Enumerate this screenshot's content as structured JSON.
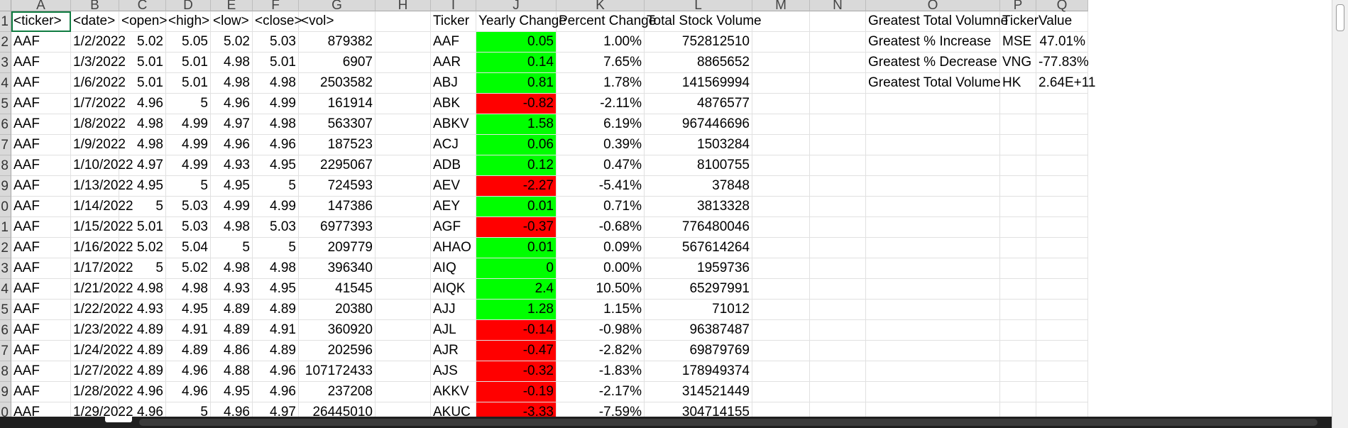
{
  "sheet": {
    "columns": [
      "A",
      "B",
      "C",
      "D",
      "E",
      "F",
      "G",
      "H",
      "I",
      "J",
      "K",
      "L",
      "M",
      "N",
      "O",
      "P",
      "Q"
    ],
    "row_numbers": [
      "1",
      "2",
      "3",
      "4",
      "5",
      "6",
      "7",
      "8",
      "9",
      "0",
      "1",
      "2",
      "3",
      "4",
      "5",
      "6",
      "7",
      "8",
      "9",
      "0"
    ],
    "header": [
      "<ticker>",
      "<date>",
      "<open>",
      "<high>",
      "<low>",
      "<close>",
      "<vol>",
      "",
      "Ticker",
      "Yearly Change",
      "Percent Change",
      "Total Stock Volume",
      "",
      "",
      "Greatest Total Volumne",
      "Ticker",
      "Value"
    ],
    "rows": [
      [
        "AAF",
        "1/2/2022",
        "5.02",
        "5.05",
        "5.02",
        "5.03",
        "879382",
        "",
        "AAF",
        "0.05",
        "1.00%",
        "752812510",
        "",
        "",
        "Greatest % Increase",
        "MSE",
        "47.01%"
      ],
      [
        "AAF",
        "1/3/2022",
        "5.01",
        "5.01",
        "4.98",
        "5.01",
        "6907",
        "",
        "AAR",
        "0.14",
        "7.65%",
        "8865652",
        "",
        "",
        "Greatest % Decrease",
        "VNG",
        "-77.83%"
      ],
      [
        "AAF",
        "1/6/2022",
        "5.01",
        "5.01",
        "4.98",
        "4.98",
        "2503582",
        "",
        "ABJ",
        "0.81",
        "1.78%",
        "141569994",
        "",
        "",
        "Greatest Total Volume",
        "HK",
        "2.64E+11"
      ],
      [
        "AAF",
        "1/7/2022",
        "4.96",
        "5",
        "4.96",
        "4.99",
        "161914",
        "",
        "ABK",
        "-0.82",
        "-2.11%",
        "4876577",
        "",
        "",
        "",
        "",
        ""
      ],
      [
        "AAF",
        "1/8/2022",
        "4.98",
        "4.99",
        "4.97",
        "4.98",
        "563307",
        "",
        "ABKV",
        "1.58",
        "6.19%",
        "967446696",
        "",
        "",
        "",
        "",
        ""
      ],
      [
        "AAF",
        "1/9/2022",
        "4.98",
        "4.99",
        "4.96",
        "4.96",
        "187523",
        "",
        "ACJ",
        "0.06",
        "0.39%",
        "1503284",
        "",
        "",
        "",
        "",
        ""
      ],
      [
        "AAF",
        "1/10/2022",
        "4.97",
        "4.99",
        "4.93",
        "4.95",
        "2295067",
        "",
        "ADB",
        "0.12",
        "0.47%",
        "8100755",
        "",
        "",
        "",
        "",
        ""
      ],
      [
        "AAF",
        "1/13/2022",
        "4.95",
        "5",
        "4.95",
        "5",
        "724593",
        "",
        "AEV",
        "-2.27",
        "-5.41%",
        "37848",
        "",
        "",
        "",
        "",
        ""
      ],
      [
        "AAF",
        "1/14/2022",
        "5",
        "5.03",
        "4.99",
        "4.99",
        "147386",
        "",
        "AEY",
        "0.01",
        "0.71%",
        "3813328",
        "",
        "",
        "",
        "",
        ""
      ],
      [
        "AAF",
        "1/15/2022",
        "5.01",
        "5.03",
        "4.98",
        "5.03",
        "6977393",
        "",
        "AGF",
        "-0.37",
        "-0.68%",
        "776480046",
        "",
        "",
        "",
        "",
        ""
      ],
      [
        "AAF",
        "1/16/2022",
        "5.02",
        "5.04",
        "5",
        "5",
        "209779",
        "",
        "AHAO",
        "0.01",
        "0.09%",
        "567614264",
        "",
        "",
        "",
        "",
        ""
      ],
      [
        "AAF",
        "1/17/2022",
        "5",
        "5.02",
        "4.98",
        "4.98",
        "396340",
        "",
        "AIQ",
        "0",
        "0.00%",
        "1959736",
        "",
        "",
        "",
        "",
        ""
      ],
      [
        "AAF",
        "1/21/2022",
        "4.98",
        "4.98",
        "4.93",
        "4.95",
        "41545",
        "",
        "AIQK",
        "2.4",
        "10.50%",
        "65297991",
        "",
        "",
        "",
        "",
        ""
      ],
      [
        "AAF",
        "1/22/2022",
        "4.93",
        "4.95",
        "4.89",
        "4.89",
        "20380",
        "",
        "AJJ",
        "1.28",
        "1.15%",
        "71012",
        "",
        "",
        "",
        "",
        ""
      ],
      [
        "AAF",
        "1/23/2022",
        "4.89",
        "4.91",
        "4.89",
        "4.91",
        "360920",
        "",
        "AJL",
        "-0.14",
        "-0.98%",
        "96387487",
        "",
        "",
        "",
        "",
        ""
      ],
      [
        "AAF",
        "1/24/2022",
        "4.89",
        "4.89",
        "4.86",
        "4.89",
        "202596",
        "",
        "AJR",
        "-0.47",
        "-2.82%",
        "69879769",
        "",
        "",
        "",
        "",
        ""
      ],
      [
        "AAF",
        "1/27/2022",
        "4.89",
        "4.96",
        "4.88",
        "4.96",
        "107172433",
        "",
        "AJS",
        "-0.32",
        "-1.83%",
        "178949374",
        "",
        "",
        "",
        "",
        ""
      ],
      [
        "AAF",
        "1/28/2022",
        "4.96",
        "4.96",
        "4.95",
        "4.96",
        "237208",
        "",
        "AKKV",
        "-0.19",
        "-2.17%",
        "314521449",
        "",
        "",
        "",
        "",
        ""
      ],
      [
        "AAF",
        "1/29/2022",
        "4.96",
        "5",
        "4.96",
        "4.97",
        "26445010",
        "",
        "AKUC",
        "-3.33",
        "-7.59%",
        "304714155",
        "",
        "",
        "",
        "",
        ""
      ]
    ],
    "colors": {
      "positive_fill": "#00ff00",
      "negative_fill": "#ff0000",
      "active_cell_border": "#107c41",
      "header_fill": "#d9d9d9",
      "gridline": "#e1e1e1"
    }
  }
}
